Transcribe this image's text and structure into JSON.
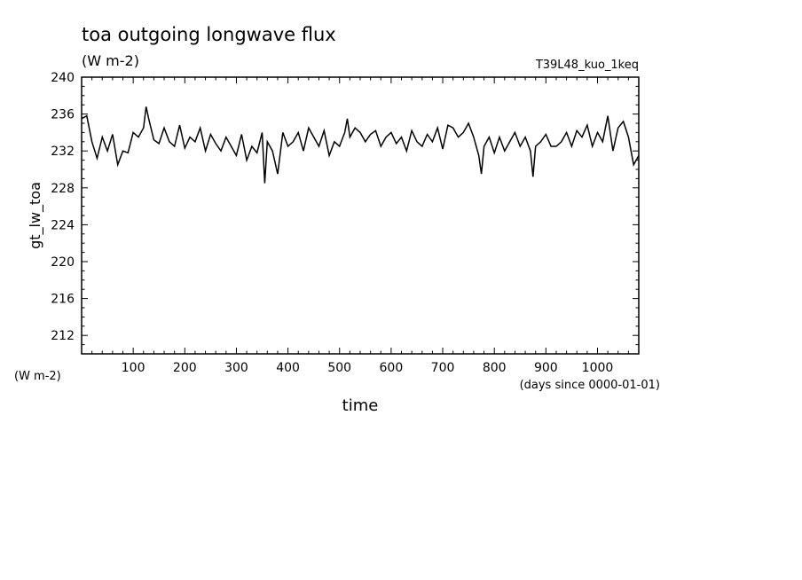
{
  "chart_data": {
    "type": "line",
    "title": "toa outgoing longwave flux",
    "subtitle": "(W m-2)",
    "run_label": "T39L48_kuo_1keq",
    "ylabel": "gt_lw_toa",
    "y_unit_label": "(W m-2)",
    "xlabel": "time",
    "x_unit_label": "(days since 0000-01-01)",
    "xlim": [
      0,
      1080
    ],
    "ylim": [
      210,
      240
    ],
    "x_ticks": [
      100,
      200,
      300,
      400,
      500,
      600,
      700,
      800,
      900,
      1000
    ],
    "y_ticks": [
      212,
      216,
      220,
      224,
      228,
      232,
      236,
      240
    ],
    "grid": false,
    "series": [
      {
        "color": "#000000",
        "x": [
          0,
          10,
          20,
          30,
          40,
          50,
          60,
          70,
          80,
          90,
          100,
          110,
          120,
          125,
          130,
          140,
          150,
          160,
          170,
          180,
          190,
          200,
          210,
          220,
          230,
          240,
          250,
          260,
          270,
          280,
          290,
          300,
          310,
          320,
          330,
          340,
          350,
          355,
          360,
          370,
          380,
          390,
          400,
          410,
          420,
          430,
          440,
          450,
          460,
          470,
          480,
          490,
          500,
          510,
          515,
          520,
          530,
          540,
          550,
          560,
          570,
          580,
          590,
          600,
          610,
          620,
          630,
          640,
          650,
          660,
          670,
          680,
          690,
          700,
          710,
          720,
          730,
          740,
          750,
          760,
          770,
          775,
          780,
          790,
          800,
          810,
          820,
          830,
          840,
          850,
          860,
          870,
          875,
          880,
          890,
          900,
          910,
          920,
          930,
          940,
          950,
          960,
          970,
          980,
          990,
          1000,
          1010,
          1020,
          1030,
          1040,
          1050,
          1060,
          1070,
          1080
        ],
        "values": [
          235.5,
          235.8,
          233.0,
          231.2,
          233.5,
          232.0,
          233.8,
          230.5,
          232.0,
          231.8,
          234.0,
          233.5,
          234.5,
          236.8,
          235.5,
          233.2,
          232.8,
          234.5,
          233.0,
          232.5,
          234.8,
          232.3,
          233.5,
          233.0,
          234.5,
          232.0,
          233.8,
          232.8,
          232.0,
          233.5,
          232.5,
          231.5,
          233.8,
          231.0,
          232.5,
          231.8,
          234.0,
          228.5,
          233.0,
          232.0,
          229.5,
          234.0,
          232.5,
          233.0,
          234.0,
          232.0,
          234.5,
          233.5,
          232.5,
          234.2,
          231.5,
          233.0,
          232.5,
          234.0,
          235.5,
          233.5,
          234.5,
          234.0,
          233.0,
          233.8,
          234.2,
          232.5,
          233.5,
          234.0,
          232.8,
          233.5,
          232.0,
          234.2,
          233.0,
          232.5,
          233.8,
          233.0,
          234.5,
          232.2,
          234.8,
          234.5,
          233.5,
          234.0,
          235.0,
          233.5,
          231.5,
          229.5,
          232.5,
          233.5,
          231.8,
          233.5,
          232.0,
          233.0,
          234.0,
          232.5,
          233.5,
          232.0,
          229.2,
          232.5,
          233.0,
          233.8,
          232.5,
          232.5,
          233.0,
          234.0,
          232.5,
          234.2,
          233.5,
          234.8,
          232.5,
          234.0,
          233.0,
          235.8,
          232.0,
          234.5,
          235.2,
          233.5,
          230.5,
          231.5
        ]
      }
    ]
  }
}
